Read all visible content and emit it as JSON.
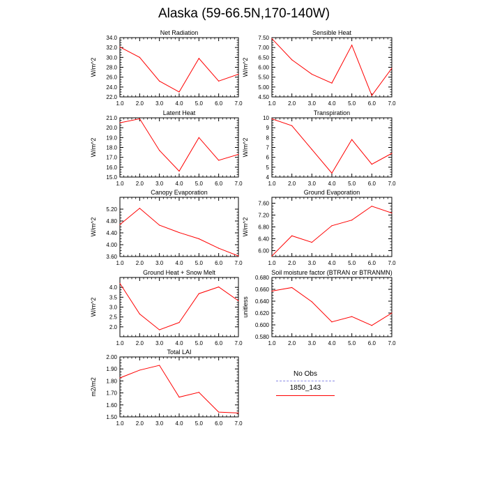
{
  "title": "Alaska (59-66.5N,170-140W)",
  "colors": {
    "series": "#ff0000",
    "obs": "#8a8ae6"
  },
  "legend": {
    "obs_label": "No Obs",
    "case_label": "1850_143"
  },
  "chart_data": [
    {
      "type": "line",
      "title": "Net Radiation",
      "ylabel": "W/m^2",
      "x": [
        1,
        2,
        3,
        4,
        5,
        6,
        7
      ],
      "xlim": [
        1,
        7
      ],
      "xticks": [
        "1.0",
        "2.0",
        "3.0",
        "4.0",
        "5.0",
        "6.0",
        "7.0"
      ],
      "ylim": [
        22,
        34
      ],
      "yticks": [
        "22.0",
        "24.0",
        "26.0",
        "28.0",
        "30.0",
        "32.0",
        "34.0"
      ],
      "series": [
        {
          "name": "1850_143",
          "values": [
            32.1,
            30.0,
            25.2,
            23.0,
            29.8,
            25.2,
            26.6
          ]
        }
      ]
    },
    {
      "type": "line",
      "title": "Sensible Heat",
      "ylabel": "W/m^2",
      "x": [
        1,
        2,
        3,
        4,
        5,
        6,
        7
      ],
      "xlim": [
        1,
        7
      ],
      "xticks": [
        "1.0",
        "2.0",
        "3.0",
        "4.0",
        "5.0",
        "6.0",
        "7.0"
      ],
      "ylim": [
        4.5,
        7.5
      ],
      "yticks": [
        "4.50",
        "5.00",
        "5.50",
        "6.00",
        "6.50",
        "7.00",
        "7.50"
      ],
      "series": [
        {
          "name": "1850_143",
          "values": [
            7.45,
            6.38,
            5.65,
            5.2,
            7.12,
            4.57,
            5.95
          ]
        }
      ]
    },
    {
      "type": "line",
      "title": "Latent Heat",
      "ylabel": "W/m^2",
      "x": [
        1,
        2,
        3,
        4,
        5,
        6,
        7
      ],
      "xlim": [
        1,
        7
      ],
      "xticks": [
        "1.0",
        "2.0",
        "3.0",
        "4.0",
        "5.0",
        "6.0",
        "7.0"
      ],
      "ylim": [
        15,
        21
      ],
      "yticks": [
        "15.0",
        "16.0",
        "17.0",
        "18.0",
        "19.0",
        "20.0",
        "21.0"
      ],
      "series": [
        {
          "name": "1850_143",
          "values": [
            20.5,
            20.9,
            17.7,
            15.6,
            19.0,
            16.7,
            17.3
          ]
        }
      ]
    },
    {
      "type": "line",
      "title": "Transpiration",
      "ylabel": "W/m^2",
      "x": [
        1,
        2,
        3,
        4,
        5,
        6,
        7
      ],
      "xlim": [
        1,
        7
      ],
      "xticks": [
        "1.0",
        "2.0",
        "3.0",
        "4.0",
        "5.0",
        "6.0",
        "7.0"
      ],
      "ylim": [
        4,
        10
      ],
      "yticks": [
        "4",
        "5",
        "6",
        "7",
        "8",
        "9",
        "10"
      ],
      "series": [
        {
          "name": "1850_143",
          "values": [
            9.9,
            9.2,
            6.8,
            4.4,
            7.8,
            5.3,
            6.4
          ]
        }
      ]
    },
    {
      "type": "line",
      "title": "Canopy Evaporation",
      "ylabel": "W/m^2",
      "x": [
        1,
        2,
        3,
        4,
        5,
        6,
        7
      ],
      "xlim": [
        1,
        7
      ],
      "xticks": [
        "1.0",
        "2.0",
        "3.0",
        "4.0",
        "5.0",
        "6.0",
        "7.0"
      ],
      "ylim": [
        3.6,
        5.6
      ],
      "yticks": [
        "3.60",
        "4.00",
        "4.40",
        "4.80",
        "5.20"
      ],
      "series": [
        {
          "name": "1850_143",
          "values": [
            4.68,
            5.23,
            4.66,
            4.41,
            4.2,
            3.88,
            3.62
          ]
        }
      ]
    },
    {
      "type": "line",
      "title": "Ground Evaporation",
      "ylabel": "W/m^2",
      "x": [
        1,
        2,
        3,
        4,
        5,
        6,
        7
      ],
      "xlim": [
        1,
        7
      ],
      "xticks": [
        "1.0",
        "2.0",
        "3.0",
        "4.0",
        "5.0",
        "6.0",
        "7.0"
      ],
      "ylim": [
        5.8,
        7.8
      ],
      "yticks": [
        "6.00",
        "6.40",
        "6.80",
        "7.20",
        "7.60"
      ],
      "series": [
        {
          "name": "1850_143",
          "values": [
            5.82,
            6.5,
            6.28,
            6.84,
            7.03,
            7.5,
            7.27
          ]
        }
      ]
    },
    {
      "type": "line",
      "title": "Ground Heat + Snow Melt",
      "ylabel": "W/m^2",
      "x": [
        1,
        2,
        3,
        4,
        5,
        6,
        7
      ],
      "xlim": [
        1,
        7
      ],
      "xticks": [
        "1.0",
        "2.0",
        "3.0",
        "4.0",
        "5.0",
        "6.0",
        "7.0"
      ],
      "ylim": [
        1.5,
        4.5
      ],
      "yticks": [
        "2.0",
        "2.5",
        "3.0",
        "3.5",
        "4.0"
      ],
      "series": [
        {
          "name": "1850_143",
          "values": [
            4.2,
            2.65,
            1.85,
            2.22,
            3.68,
            4.02,
            3.32
          ]
        }
      ]
    },
    {
      "type": "line",
      "title": "Soil moisture factor (BTRAN or BTRANMN)",
      "ylabel": "unitless",
      "x": [
        1,
        2,
        3,
        4,
        5,
        6,
        7
      ],
      "xlim": [
        1,
        7
      ],
      "xticks": [
        "1.0",
        "2.0",
        "3.0",
        "4.0",
        "5.0",
        "6.0",
        "7.0"
      ],
      "ylim": [
        0.58,
        0.68
      ],
      "yticks": [
        "0.580",
        "0.600",
        "0.620",
        "0.640",
        "0.660",
        "0.680"
      ],
      "series": [
        {
          "name": "1850_143",
          "values": [
            0.657,
            0.663,
            0.639,
            0.605,
            0.614,
            0.599,
            0.62
          ]
        }
      ]
    },
    {
      "type": "line",
      "title": "Total LAI",
      "ylabel": "m2/m2",
      "x": [
        1,
        2,
        3,
        4,
        5,
        6,
        7
      ],
      "xlim": [
        1,
        7
      ],
      "xticks": [
        "1.0",
        "2.0",
        "3.0",
        "4.0",
        "5.0",
        "6.0",
        "7.0"
      ],
      "ylim": [
        1.5,
        2.0
      ],
      "yticks": [
        "1.50",
        "1.60",
        "1.70",
        "1.80",
        "1.90",
        "2.00"
      ],
      "series": [
        {
          "name": "1850_143",
          "values": [
            1.825,
            1.89,
            1.93,
            1.665,
            1.705,
            1.54,
            1.533
          ]
        }
      ]
    }
  ]
}
